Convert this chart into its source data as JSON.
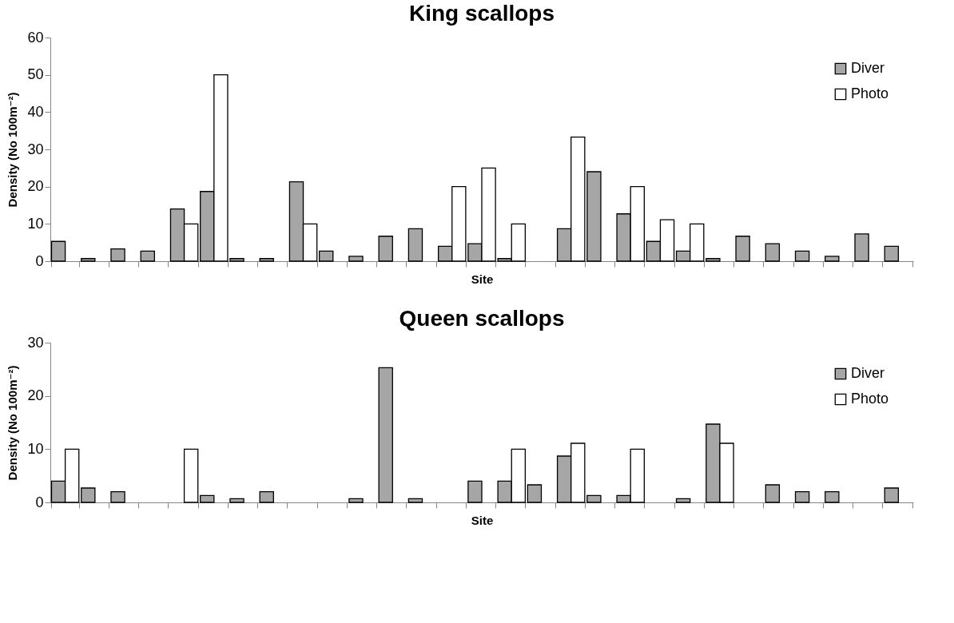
{
  "chart_data": [
    {
      "type": "bar",
      "title": "King scallops",
      "xlabel": "Site",
      "ylabel": "Density (No 100m⁻²)",
      "categories": [
        null,
        null,
        null,
        null,
        null,
        null,
        null,
        null,
        null,
        null,
        null,
        null,
        null,
        null,
        null,
        null,
        null,
        null,
        null,
        null,
        null,
        null,
        null,
        null,
        null,
        null,
        null,
        null,
        null
      ],
      "ylim": [
        0,
        60
      ],
      "yticks": [
        0,
        10,
        20,
        30,
        40,
        50,
        60
      ],
      "grid": false,
      "legend": "top right",
      "tick_labels": "y",
      "series": [
        {
          "name": "Diver",
          "color": "#a6a6a6",
          "values": [
            5.3,
            0.7,
            3.3,
            2.7,
            14,
            18.7,
            0.7,
            0.7,
            21.3,
            2.7,
            1.3,
            6.7,
            8.7,
            4,
            4.7,
            0.7,
            null,
            8.7,
            24,
            12.7,
            5.3,
            2.7,
            0.7,
            6.7,
            4.7,
            2.7,
            1.3,
            7.3,
            4
          ]
        },
        {
          "name": "Photo",
          "color": "#ffffff",
          "values": [
            null,
            null,
            null,
            null,
            10,
            50,
            null,
            null,
            10,
            null,
            null,
            null,
            null,
            20,
            25,
            10,
            null,
            33.3,
            null,
            20,
            11.1,
            10,
            null,
            null,
            null,
            null,
            null,
            null,
            null
          ]
        }
      ]
    },
    {
      "type": "bar",
      "title": "Queen scallops",
      "xlabel": "Site",
      "ylabel": "Density (No 100m⁻²)",
      "categories": [
        null,
        null,
        null,
        null,
        null,
        null,
        null,
        null,
        null,
        null,
        null,
        null,
        null,
        null,
        null,
        null,
        null,
        null,
        null,
        null,
        null,
        null,
        null,
        null,
        null,
        null,
        null,
        null,
        null
      ],
      "ylim": [
        0,
        30
      ],
      "yticks": [
        0,
        10,
        20,
        30
      ],
      "grid": false,
      "legend": "top right",
      "tick_labels": "y",
      "series": [
        {
          "name": "Diver",
          "color": "#a6a6a6",
          "values": [
            4,
            2.7,
            2,
            null,
            null,
            1.3,
            0.7,
            2,
            null,
            null,
            0.7,
            25.3,
            0.7,
            null,
            4,
            4,
            3.3,
            8.7,
            1.3,
            1.3,
            null,
            0.7,
            14.7,
            null,
            3.3,
            2,
            2,
            null,
            2.7
          ]
        },
        {
          "name": "Photo",
          "color": "#ffffff",
          "values": [
            10,
            null,
            null,
            null,
            10,
            null,
            null,
            null,
            null,
            null,
            null,
            null,
            null,
            null,
            null,
            10,
            null,
            11.1,
            null,
            10,
            null,
            null,
            11.1,
            null,
            null,
            null,
            null,
            null,
            null
          ]
        }
      ]
    }
  ]
}
